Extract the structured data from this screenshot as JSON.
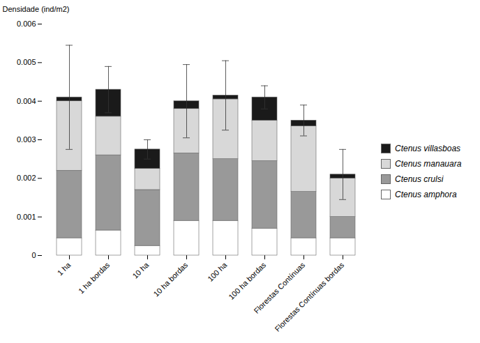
{
  "chart_data": {
    "type": "bar",
    "stacked": true,
    "ylabel": "Densidade (ind/m2)",
    "categories": [
      "1 ha",
      "1 ha bordas",
      "10 ha",
      "10 ha bordas",
      "100 ha",
      "100 ha bordas",
      "Florestas Contínuas",
      "Florestas Contínuas bordas"
    ],
    "series": [
      {
        "name": "Ctenus amphora",
        "color": "#ffffff",
        "values": [
          0.00045,
          0.00065,
          0.00025,
          0.0009,
          0.0009,
          0.0007,
          0.00045,
          0.00045
        ]
      },
      {
        "name": "Ctenus crulsi",
        "color": "#999999",
        "values": [
          0.00175,
          0.00195,
          0.00145,
          0.00175,
          0.0016,
          0.00175,
          0.0012,
          0.00055
        ]
      },
      {
        "name": "Ctenus manauara",
        "color": "#d8d8d8",
        "values": [
          0.0018,
          0.001,
          0.00055,
          0.00115,
          0.00155,
          0.00105,
          0.0017,
          0.001
        ]
      },
      {
        "name": "Ctenus villasboas",
        "color": "#1a1a1a",
        "values": [
          0.0001,
          0.0007,
          0.0005,
          0.0002,
          0.0001,
          0.0006,
          0.00015,
          0.0001
        ]
      }
    ],
    "errors": [
      0.00135,
      0.0006,
      0.00025,
      0.00095,
      0.0009,
      0.0003,
      0.0004,
      0.00065
    ],
    "ylim": [
      0,
      0.006
    ],
    "yticks": [
      0,
      0.001,
      0.002,
      0.003,
      0.004,
      0.005,
      0.006
    ],
    "grid": false,
    "legend": "right"
  }
}
